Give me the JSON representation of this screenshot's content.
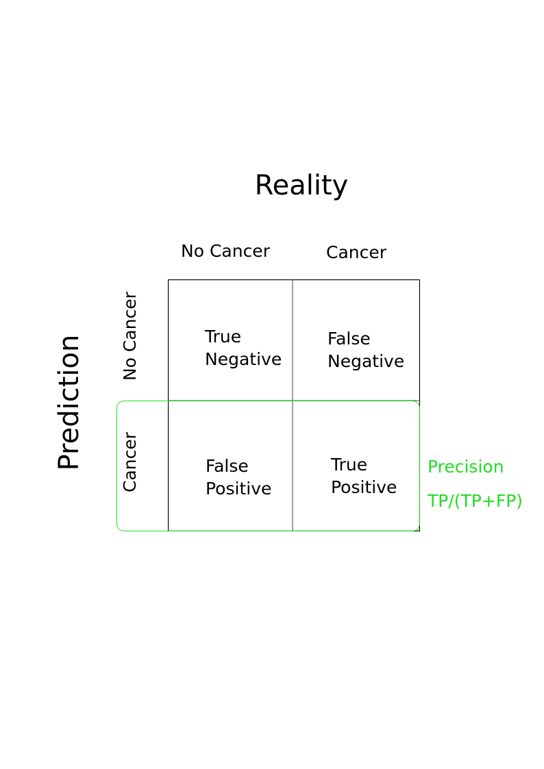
{
  "title": "Reality",
  "row_axis_label": "Prediction",
  "columns": [
    "No Cancer",
    "Cancer"
  ],
  "rows": [
    "No Cancer",
    "Cancer"
  ],
  "cells": {
    "tn": {
      "line1": "True",
      "line2": "Negative"
    },
    "fn": {
      "line1": "False",
      "line2": "Negative"
    },
    "fp": {
      "line1": "False",
      "line2": "Positive"
    },
    "tp": {
      "line1": "True",
      "line2": "Positive"
    }
  },
  "metric": {
    "name": "Precision",
    "formula": "TP/(TP+FP)",
    "color": "#22dd22"
  }
}
